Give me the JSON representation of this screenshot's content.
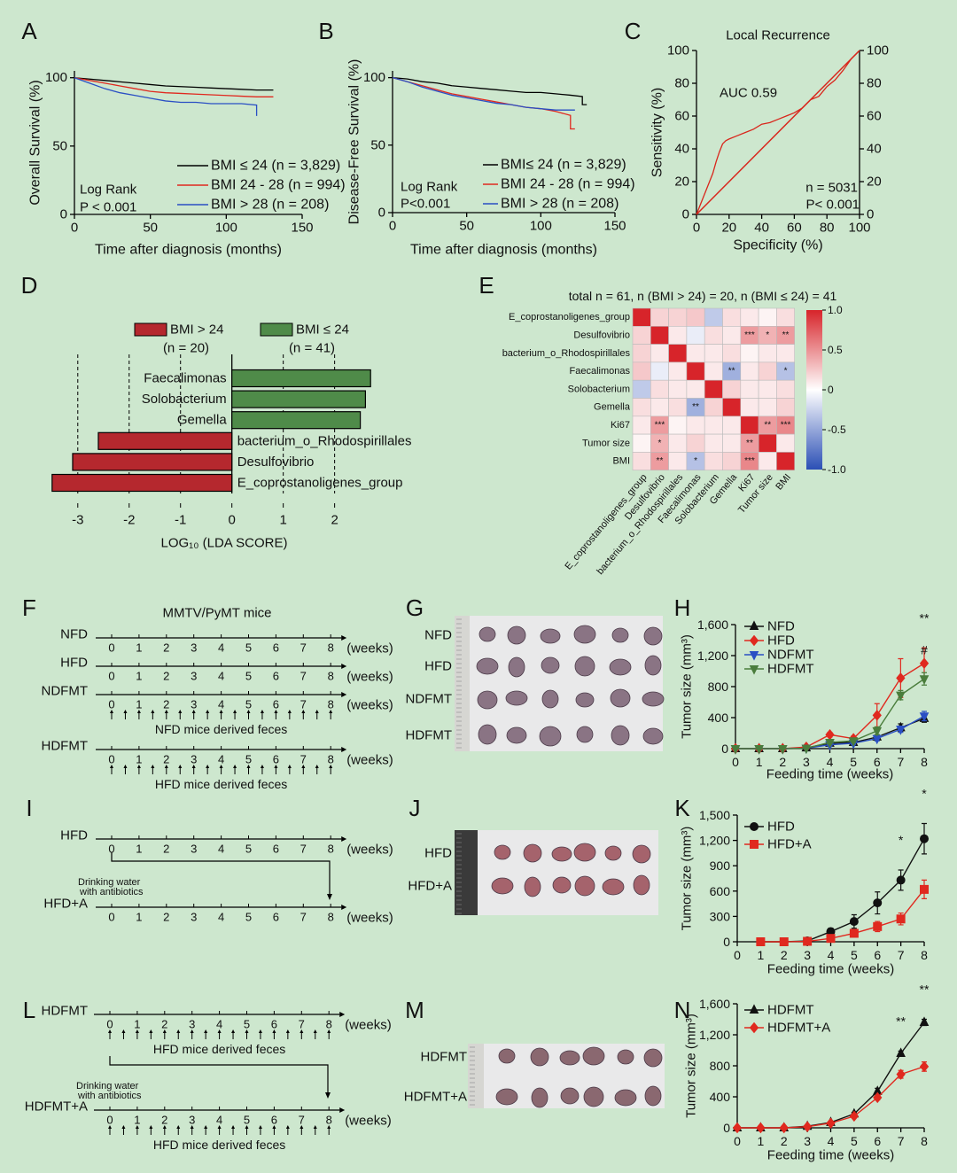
{
  "panel_labels": [
    "A",
    "B",
    "C",
    "D",
    "E",
    "F",
    "G",
    "H",
    "I",
    "J",
    "K",
    "L",
    "M",
    "N"
  ],
  "chart_data": [
    {
      "type": "line",
      "x_label": "Time after diagnosis (months)",
      "y_label": "Overall Survival (%)",
      "xlim": [
        0,
        150
      ],
      "xticks": [
        0,
        50,
        100,
        150
      ],
      "ylim": [
        0,
        105
      ],
      "yticks": [
        0,
        50,
        100
      ],
      "legend": "lower right",
      "annotations": [
        "Log Rank",
        "P < 0.001"
      ],
      "series": [
        {
          "name": "BMI ≤ 24 (n = 3,829)",
          "color": "#000000",
          "x": [
            0,
            10,
            20,
            30,
            40,
            50,
            60,
            70,
            80,
            90,
            100,
            110,
            120,
            131
          ],
          "values": [
            100,
            99,
            98,
            97,
            96,
            95,
            94,
            93.5,
            93,
            92.5,
            92,
            91.5,
            91,
            91
          ]
        },
        {
          "name": "BMI 24 - 28 (n = 994)",
          "color": "#e0291f",
          "x": [
            0,
            10,
            20,
            30,
            40,
            50,
            60,
            70,
            80,
            90,
            100,
            110,
            120,
            131
          ],
          "values": [
            100,
            98,
            96,
            94,
            92,
            90,
            89,
            88.5,
            88,
            87.5,
            87,
            86.5,
            86,
            86
          ]
        },
        {
          "name": "BMI > 28 (n = 208)",
          "color": "#2a4fc4",
          "x": [
            0,
            10,
            20,
            30,
            40,
            50,
            60,
            70,
            80,
            90,
            100,
            110,
            120,
            120
          ],
          "values": [
            100,
            96,
            92,
            89,
            87,
            85,
            83,
            82,
            82,
            81,
            81,
            81,
            80,
            72
          ]
        }
      ]
    },
    {
      "type": "line",
      "x_label": "Time after diagnosis (months)",
      "y_label": "Disease-Free Survival (%)",
      "xlim": [
        0,
        150
      ],
      "xticks": [
        0,
        50,
        100,
        150
      ],
      "ylim": [
        0,
        105
      ],
      "yticks": [
        0,
        50,
        100
      ],
      "legend": "lower right",
      "annotations": [
        "Log Rank",
        "P<0.001"
      ],
      "series": [
        {
          "name": "BMI≤ 24 (n = 3,829)",
          "color": "#000000",
          "x": [
            0,
            10,
            20,
            30,
            40,
            50,
            60,
            70,
            80,
            90,
            100,
            110,
            120,
            128,
            128,
            131
          ],
          "values": [
            100,
            99,
            97,
            96,
            94,
            93,
            92,
            91,
            90,
            89,
            89,
            88,
            87,
            86,
            80,
            80
          ]
        },
        {
          "name": "BMI 24 - 28 (n = 994)",
          "color": "#e0291f",
          "x": [
            0,
            10,
            20,
            30,
            40,
            50,
            60,
            70,
            80,
            90,
            100,
            110,
            120,
            120,
            123
          ],
          "values": [
            100,
            97,
            94,
            91,
            88,
            86,
            84,
            82,
            80,
            78,
            77,
            75,
            72,
            62,
            62
          ]
        },
        {
          "name": "BMI > 28 (n = 208)",
          "color": "#2a4fc4",
          "x": [
            0,
            10,
            20,
            30,
            40,
            50,
            60,
            70,
            80,
            90,
            100,
            110,
            123
          ],
          "values": [
            100,
            97,
            93,
            90,
            87,
            85,
            83,
            81,
            80,
            78,
            77,
            76,
            76
          ]
        }
      ]
    },
    {
      "type": "line",
      "title": "Local Recurrence",
      "x_label": "Specificity (%)",
      "y_label": "Sensitivity (%)",
      "xlim": [
        0,
        100
      ],
      "xticks": [
        0,
        20,
        40,
        60,
        80,
        100
      ],
      "ylim": [
        0,
        100
      ],
      "yticks": [
        0,
        20,
        40,
        60,
        80,
        100
      ],
      "y2lim": [
        0,
        100
      ],
      "y2ticks": [
        0,
        20,
        40,
        60,
        80,
        100
      ],
      "diagonal": true,
      "annotations": [
        "AUC 0.59",
        "n = 5031",
        "P< 0.001"
      ],
      "series": [
        {
          "color": "#d9261c",
          "x": [
            0,
            2,
            4,
            6,
            8,
            10,
            12,
            14,
            16,
            18,
            20,
            25,
            30,
            35,
            40,
            45,
            50,
            55,
            60,
            65,
            70,
            75,
            80,
            85,
            90,
            95,
            100
          ],
          "values": [
            0,
            5,
            10,
            15,
            20,
            25,
            32,
            38,
            43,
            45,
            46,
            48,
            50,
            52,
            55,
            56,
            58,
            60,
            62,
            65,
            70,
            72,
            78,
            82,
            88,
            95,
            100
          ]
        }
      ]
    },
    {
      "type": "bar",
      "orientation": "horizontal",
      "x_label": "LOG₁₀ (LDA SCORE)",
      "xlim": [
        -3.6,
        2.8
      ],
      "xticks": [
        -3,
        -2,
        -1,
        0,
        1,
        2
      ],
      "grid": "dashed",
      "series": [
        {
          "name": "BMI > 24",
          "note": "(n = 20)",
          "color": "#b5282e",
          "categories": [
            "bacterium_o_Rhodospirillales",
            "Desulfovibrio",
            "E_coprostanoligenes_group"
          ],
          "values": [
            -2.6,
            -3.1,
            -3.5
          ]
        },
        {
          "name": "BMI ≤ 24",
          "note": "(n = 41)",
          "color": "#4f8b49",
          "categories": [
            "Faecalimonas",
            "Solobacterium",
            "Gemella"
          ],
          "values": [
            2.7,
            2.6,
            2.5
          ]
        }
      ]
    },
    {
      "type": "heatmap",
      "title": "total n = 61, n (BMI > 24) = 20, n (BMI ≤ 24) = 41",
      "rows": [
        "E_coprostanoligenes_group",
        "Desulfovibrio",
        "bacterium_o_Rhodospirillales",
        "Faecalimonas",
        "Solobacterium",
        "Gemella",
        "Ki67",
        "Tumor size",
        "BMI"
      ],
      "columns": [
        "E_coprostanoligenes_group",
        "Desulfovibrio",
        "bacterium_o_Rhodospirillales",
        "Faecalimonas",
        "Solobacterium",
        "Gemella",
        "Ki67",
        "Tumor size",
        "BMI"
      ],
      "values": [
        [
          1,
          0.2,
          0.2,
          0.25,
          -0.3,
          0.15,
          0.1,
          0.05,
          0.15
        ],
        [
          0.2,
          1,
          0.1,
          -0.1,
          0.15,
          0.1,
          0.45,
          0.35,
          0.45
        ],
        [
          0.2,
          0.1,
          1,
          0.1,
          0.1,
          0.15,
          0.05,
          0.1,
          0.1
        ],
        [
          0.25,
          -0.1,
          0.1,
          1,
          0.1,
          -0.45,
          0.1,
          0.2,
          -0.35
        ],
        [
          -0.3,
          0.15,
          0.1,
          0.1,
          1,
          0.2,
          0.1,
          0.1,
          0.15
        ],
        [
          0.15,
          0.1,
          0.15,
          -0.45,
          0.2,
          1,
          0.1,
          0.1,
          0.2
        ],
        [
          0.1,
          0.45,
          0.05,
          0.1,
          0.1,
          0.1,
          1,
          0.45,
          0.55
        ],
        [
          0.05,
          0.35,
          0.1,
          0.2,
          0.1,
          0.1,
          0.45,
          1,
          0.1
        ],
        [
          0.15,
          0.45,
          0.1,
          -0.35,
          0.15,
          0.2,
          0.55,
          0.1,
          1
        ]
      ],
      "stars": [
        [
          null,
          null,
          null,
          null,
          null,
          null,
          null,
          null,
          null
        ],
        [
          null,
          null,
          null,
          null,
          null,
          null,
          "***",
          "*",
          "**"
        ],
        [
          null,
          null,
          null,
          null,
          null,
          null,
          null,
          null,
          null
        ],
        [
          null,
          null,
          null,
          null,
          null,
          "**",
          null,
          null,
          "*"
        ],
        [
          null,
          null,
          null,
          null,
          null,
          null,
          null,
          null,
          null
        ],
        [
          null,
          null,
          null,
          "**",
          null,
          null,
          null,
          null,
          null
        ],
        [
          null,
          "***",
          null,
          null,
          null,
          null,
          null,
          "**",
          "***"
        ],
        [
          null,
          "*",
          null,
          null,
          null,
          null,
          "**",
          null,
          null
        ],
        [
          null,
          "**",
          null,
          "*",
          null,
          null,
          "***",
          null,
          null
        ]
      ],
      "zlim": [
        -1,
        1
      ],
      "zticks": [
        {
          "value": 1,
          "label": "1.0"
        },
        0.5,
        0,
        -0.5,
        {
          "value": -1,
          "label": "-1.0"
        }
      ],
      "colors": {
        "low": "#2b4fb5",
        "mid": "#ffffff",
        "high": "#d7242a"
      }
    },
    {
      "type": "line",
      "x_label": "Feeding time (weeks)",
      "y_label": "Tumor size (mm³)",
      "x": [
        0,
        1,
        2,
        3,
        4,
        5,
        6,
        7,
        8
      ],
      "xlim": [
        0,
        8
      ],
      "xticks": [
        0,
        1,
        2,
        3,
        4,
        5,
        6,
        7,
        8
      ],
      "ylim": [
        0,
        1600
      ],
      "yticks": [
        0,
        400,
        800,
        {
          "value": 1200,
          "label": "1,200"
        },
        {
          "value": 1600,
          "label": "1,600"
        }
      ],
      "legend": "upper left",
      "annotations": [
        {
          "text": "**",
          "x": 8
        },
        {
          "text": "#",
          "x": 8
        }
      ],
      "series": [
        {
          "name": "NFD",
          "color": "#111111",
          "marker": "triangle",
          "values": [
            0,
            0,
            0,
            10,
            70,
            80,
            150,
            270,
            390
          ],
          "errors": [
            0,
            0,
            0,
            5,
            20,
            20,
            30,
            50,
            50
          ]
        },
        {
          "name": "HFD",
          "color": "#e0291f",
          "marker": "diamond",
          "values": [
            0,
            0,
            0,
            20,
            180,
            130,
            430,
            910,
            1100
          ],
          "errors": [
            0,
            0,
            0,
            10,
            30,
            30,
            150,
            250,
            200
          ]
        },
        {
          "name": "NDFMT",
          "color": "#2a4fc4",
          "marker": "triangle-down",
          "values": [
            0,
            0,
            0,
            5,
            50,
            70,
            130,
            250,
            420
          ],
          "errors": [
            0,
            0,
            0,
            5,
            15,
            20,
            30,
            40,
            60
          ]
        },
        {
          "name": "HDFMT",
          "color": "#4a7d3c",
          "marker": "triangle-down",
          "values": [
            0,
            0,
            0,
            5,
            80,
            100,
            230,
            690,
            900
          ],
          "errors": [
            0,
            0,
            0,
            5,
            20,
            20,
            50,
            60,
            80
          ]
        }
      ]
    },
    {
      "type": "line",
      "x_label": "Feeding time (weeks)",
      "y_label": "Tumor size (mm³)",
      "x": [
        1,
        2,
        3,
        4,
        5,
        6,
        7,
        8
      ],
      "xlim": [
        0,
        8
      ],
      "xticks": [
        0,
        1,
        2,
        3,
        4,
        5,
        6,
        7,
        8
      ],
      "ylim": [
        0,
        1500
      ],
      "yticks": [
        0,
        300,
        600,
        900,
        {
          "value": 1200,
          "label": "1,200"
        },
        {
          "value": 1500,
          "label": "1,500"
        }
      ],
      "legend": "upper left",
      "annotations": [
        {
          "text": "*",
          "x": 7
        },
        {
          "text": "*",
          "x": 8
        }
      ],
      "series": [
        {
          "name": "HFD",
          "color": "#111111",
          "marker": "circle",
          "values": [
            0,
            0,
            10,
            120,
            240,
            460,
            730,
            1220
          ],
          "errors": [
            0,
            0,
            5,
            40,
            80,
            130,
            120,
            180
          ]
        },
        {
          "name": "HFD+A",
          "color": "#e0291f",
          "marker": "square",
          "values": [
            0,
            0,
            5,
            40,
            100,
            180,
            270,
            620
          ],
          "errors": [
            0,
            0,
            3,
            20,
            40,
            60,
            70,
            110
          ]
        }
      ]
    },
    {
      "type": "line",
      "x_label": "Feeding time (weeks)",
      "y_label": "Tumor size (mm³)",
      "x": [
        0,
        1,
        2,
        3,
        4,
        5,
        6,
        7,
        8
      ],
      "xlim": [
        0,
        8
      ],
      "xticks": [
        0,
        1,
        2,
        3,
        4,
        5,
        6,
        7,
        8
      ],
      "ylim": [
        0,
        1600
      ],
      "yticks": [
        0,
        400,
        800,
        {
          "value": 1200,
          "label": "1,200"
        },
        {
          "value": 1600,
          "label": "1,600"
        }
      ],
      "legend": "upper left",
      "annotations": [
        {
          "text": "**",
          "x": 7
        },
        {
          "text": "**",
          "x": 8
        }
      ],
      "series": [
        {
          "name": "HDFMT",
          "color": "#111111",
          "marker": "triangle",
          "values": [
            0,
            0,
            0,
            20,
            70,
            180,
            470,
            960,
            1360
          ],
          "errors": [
            0,
            0,
            0,
            5,
            10,
            20,
            40,
            30,
            40
          ]
        },
        {
          "name": "HDFMT+A",
          "color": "#e0291f",
          "marker": "diamond",
          "values": [
            0,
            0,
            0,
            15,
            60,
            150,
            390,
            690,
            790
          ],
          "errors": [
            0,
            0,
            0,
            5,
            10,
            20,
            30,
            50,
            60
          ]
        }
      ]
    }
  ],
  "diagrams": {
    "F": {
      "title": "MMTV/PyMT mice",
      "weeks": [
        0,
        1,
        2,
        3,
        4,
        5,
        6,
        7,
        8
      ],
      "unit": "(weeks)",
      "rows": [
        {
          "label": "NFD"
        },
        {
          "label": "HFD"
        },
        {
          "label": "NDFMT",
          "feces": "NFD mice derived feces"
        },
        {
          "label": "HDFMT",
          "feces": "HFD mice derived feces"
        }
      ]
    },
    "I": {
      "weeks": [
        0,
        1,
        2,
        3,
        4,
        5,
        6,
        7,
        8
      ],
      "unit": "(weeks)",
      "antibiotics": [
        "Drinking water",
        "with antibiotics"
      ],
      "rows": [
        {
          "label": "HFD"
        },
        {
          "label": "HFD+A"
        }
      ]
    },
    "L": {
      "weeks": [
        0,
        1,
        2,
        3,
        4,
        5,
        6,
        7,
        8
      ],
      "unit": "(weeks)",
      "antibiotics": [
        "Drinking water",
        "with antibiotics"
      ],
      "rows": [
        {
          "label": "HDFMT",
          "feces": "HFD mice derived feces"
        },
        {
          "label": "HDFMT+A",
          "feces": "HFD mice derived feces"
        }
      ]
    }
  },
  "photos": {
    "G": {
      "labels": [
        "NFD",
        "HFD",
        "NDFMT",
        "HDFMT"
      ]
    },
    "J": {
      "labels": [
        "HFD",
        "HFD+A"
      ]
    },
    "M": {
      "labels": [
        "HDFMT",
        "HDFMT+A"
      ]
    }
  }
}
